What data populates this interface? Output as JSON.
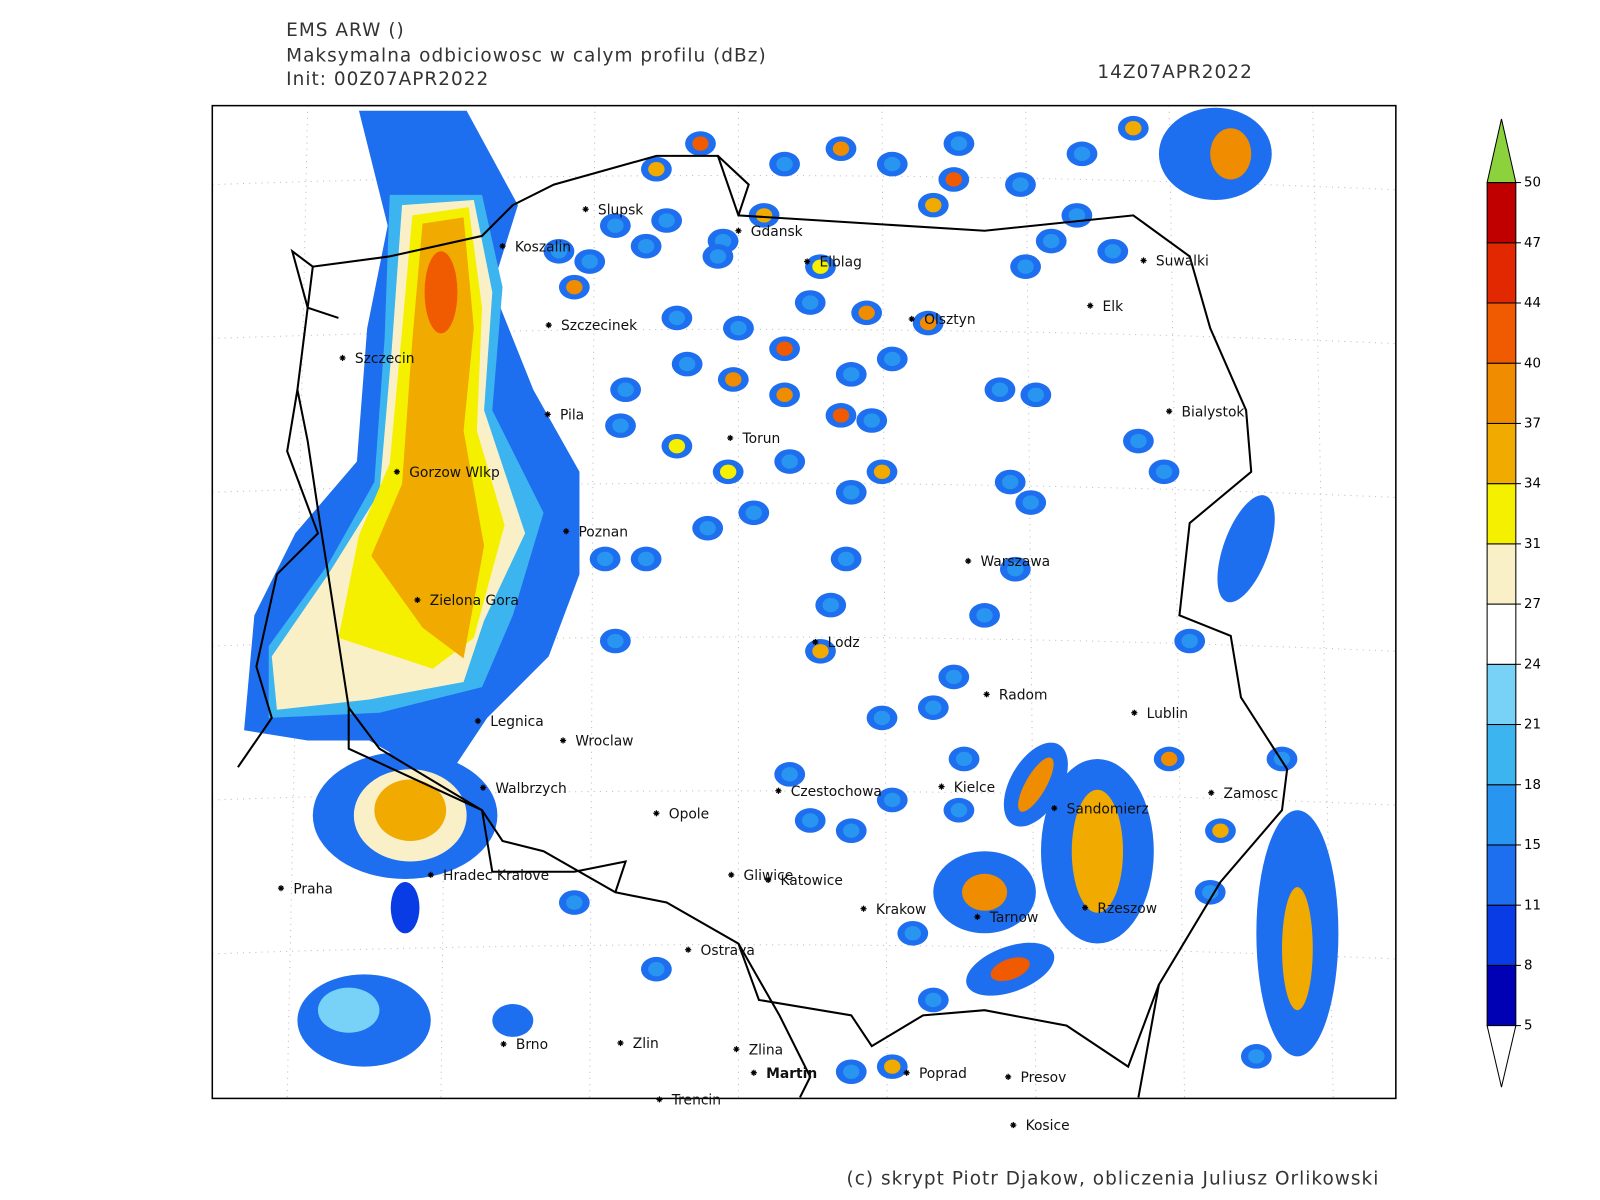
{
  "header": {
    "model": "EMS ARW ()",
    "title": "Maksymalna odbiciowosc w calym profilu (dBz)",
    "init": "Init: 00Z07APR2022",
    "valid": "14Z07APR2022"
  },
  "cities": [
    "Slupsk",
    "Koszalin",
    "Gdansk",
    "Elblag",
    "Suwalki",
    "Szczecinek",
    "Elk",
    "Olsztyn",
    "Szczecin",
    "Pila",
    "Torun",
    "Bialystok",
    "Gorzow Wlkp",
    "Poznan",
    "Warszawa",
    "Zielona Gora",
    "Lodz",
    "Radom",
    "Lublin",
    "Legnica",
    "Wroclaw",
    "Walbrzych",
    "Czestochowa",
    "Kielce",
    "Zamosc",
    "Sandomierz",
    "Opole",
    "Praha",
    "Hradec Kralove",
    "Gliwice",
    "Katowice",
    "Krakow",
    "Tarnow",
    "Rzeszow",
    "Ostrava",
    "Brno",
    "Zlin",
    "Zlina",
    "Martin",
    "Poprad",
    "Presov",
    "Trencin",
    "Kosice"
  ],
  "colorbar": {
    "levels": [
      5,
      8,
      11,
      15,
      18,
      21,
      24,
      27,
      31,
      34,
      37,
      40,
      44,
      47,
      50
    ],
    "colors": [
      "#0000b4",
      "#0a3ce6",
      "#1e6ef0",
      "#2896f0",
      "#3cb4f0",
      "#78d2f8",
      "#ffffff",
      "#faf0c8",
      "#f5f000",
      "#f0aa00",
      "#f08c00",
      "#f05a00",
      "#e12800",
      "#c00000"
    ],
    "over_color": "#8cd23c",
    "under_color": "#ffffff"
  },
  "footer": "(c) skrypt Piotr Djakow, obliczenia Juliusz Orlikowski"
}
